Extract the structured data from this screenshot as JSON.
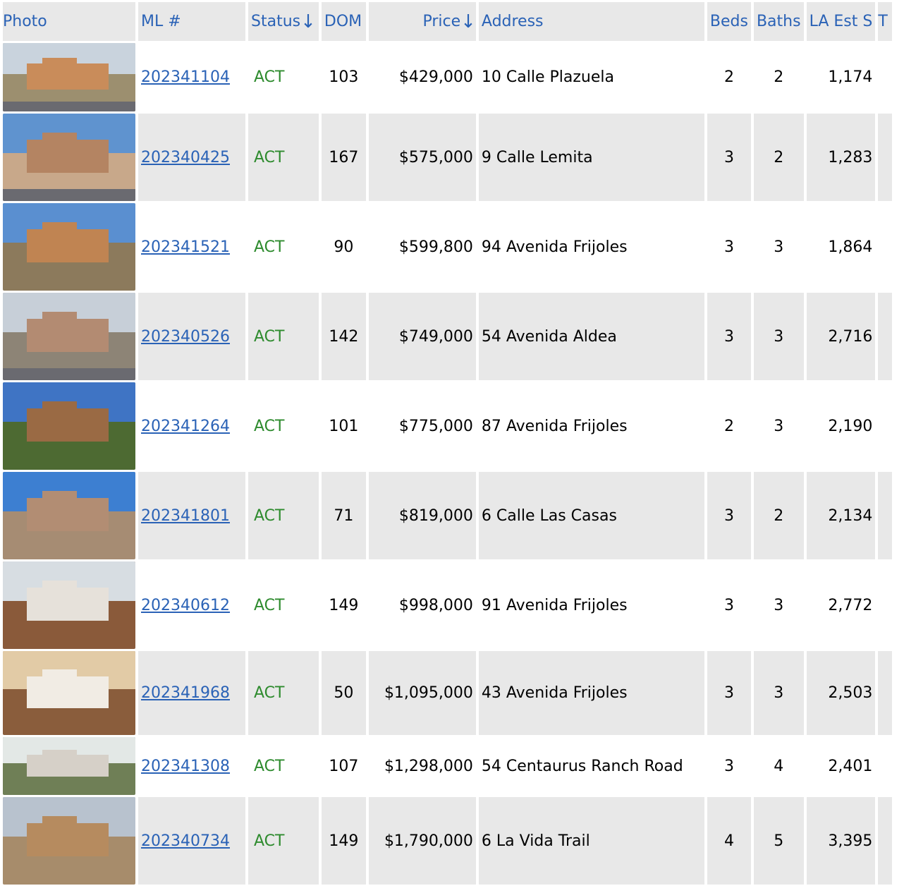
{
  "headers": {
    "photo": "Photo",
    "ml": "ML #",
    "status": "Status",
    "dom": "DOM",
    "price": "Price",
    "address": "Address",
    "beds": "Beds",
    "baths": "Baths",
    "la_est": "LA Est S",
    "t": "T"
  },
  "sort_arrow": "↓",
  "colors": {
    "link": "#2a62b6",
    "status_active": "#2e8b2e",
    "row_shade": "#e8e8e8"
  },
  "rows": [
    {
      "ml": "202341104",
      "status": "ACT",
      "dom": "103",
      "price": "$429,000",
      "address": "10 Calle Plazuela",
      "beds": "2",
      "baths": "2",
      "la_est": "1,174"
    },
    {
      "ml": "202340425",
      "status": "ACT",
      "dom": "167",
      "price": "$575,000",
      "address": "9 Calle Lemita",
      "beds": "3",
      "baths": "2",
      "la_est": "1,283"
    },
    {
      "ml": "202341521",
      "status": "ACT",
      "dom": "90",
      "price": "$599,800",
      "address": "94 Avenida Frijoles",
      "beds": "3",
      "baths": "3",
      "la_est": "1,864"
    },
    {
      "ml": "202340526",
      "status": "ACT",
      "dom": "142",
      "price": "$749,000",
      "address": "54 Avenida Aldea",
      "beds": "3",
      "baths": "3",
      "la_est": "2,716"
    },
    {
      "ml": "202341264",
      "status": "ACT",
      "dom": "101",
      "price": "$775,000",
      "address": "87 Avenida Frijoles",
      "beds": "2",
      "baths": "3",
      "la_est": "2,190"
    },
    {
      "ml": "202341801",
      "status": "ACT",
      "dom": "71",
      "price": "$819,000",
      "address": "6 Calle Las Casas",
      "beds": "3",
      "baths": "2",
      "la_est": "2,134"
    },
    {
      "ml": "202340612",
      "status": "ACT",
      "dom": "149",
      "price": "$998,000",
      "address": "91 Avenida Frijoles",
      "beds": "3",
      "baths": "3",
      "la_est": "2,772"
    },
    {
      "ml": "202341968",
      "status": "ACT",
      "dom": "50",
      "price": "$1,095,000",
      "address": "43 Avenida Frijoles",
      "beds": "3",
      "baths": "3",
      "la_est": "2,503"
    },
    {
      "ml": "202341308",
      "status": "ACT",
      "dom": "107",
      "price": "$1,298,000",
      "address": "54 Centaurus Ranch Road",
      "beds": "3",
      "baths": "4",
      "la_est": "2,401"
    },
    {
      "ml": "202340734",
      "status": "ACT",
      "dom": "149",
      "price": "$1,790,000",
      "address": "6 La Vida Trail",
      "beds": "4",
      "baths": "5",
      "la_est": "3,395"
    }
  ]
}
